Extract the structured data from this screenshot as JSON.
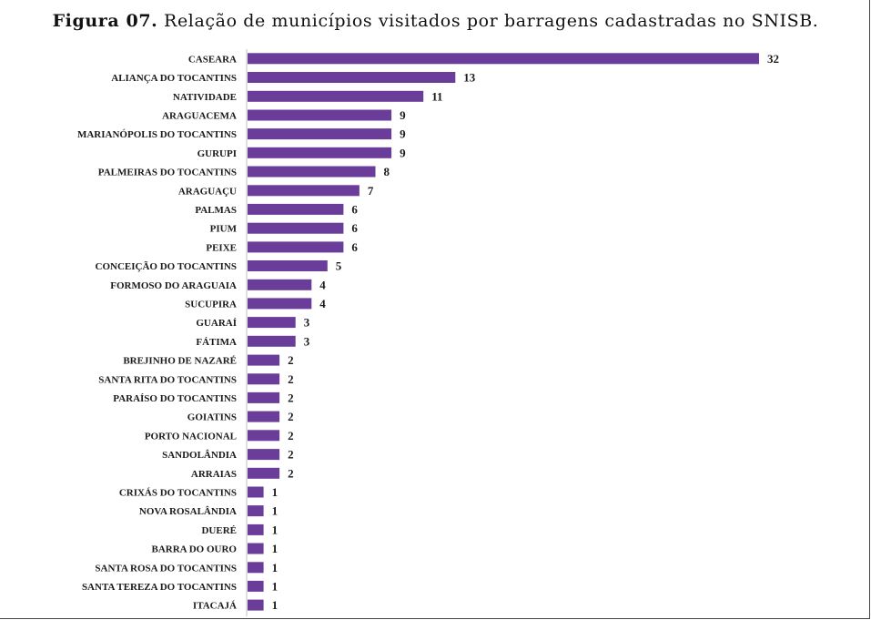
{
  "title": {
    "prefix": "Figura 07.",
    "text": "Relação de municípios visitados por  barragens cadastradas no SNISB."
  },
  "chart_data": {
    "type": "bar",
    "orientation": "horizontal",
    "categories": [
      "CASEARA",
      "ALIANÇA DO TOCANTINS",
      "NATIVIDADE",
      "ARAGUACEMA",
      "MARIANÓPOLIS DO TOCANTINS",
      "GURUPI",
      "PALMEIRAS DO TOCANTINS",
      "ARAGUAÇU",
      "PALMAS",
      "PIUM",
      "PEIXE",
      "CONCEIÇÃO DO TOCANTINS",
      "FORMOSO DO ARAGUAIA",
      "SUCUPIRA",
      "GUARAÍ",
      "FÁTIMA",
      "BREJINHO DE NAZARÉ",
      "SANTA RITA DO TOCANTINS",
      "PARAÍSO DO TOCANTINS",
      "GOIATINS",
      "PORTO NACIONAL",
      "SANDOLÂNDIA",
      "ARRAIAS",
      "CRIXÁS DO TOCANTINS",
      "NOVA ROSALÂNDIA",
      "DUERÉ",
      "BARRA DO OURO",
      "SANTA ROSA DO TOCANTINS",
      "SANTA TEREZA DO TOCANTINS",
      "ITACAJÁ"
    ],
    "values": [
      32,
      13,
      11,
      9,
      9,
      9,
      8,
      7,
      6,
      6,
      6,
      5,
      4,
      4,
      3,
      3,
      2,
      2,
      2,
      2,
      2,
      2,
      2,
      1,
      1,
      1,
      1,
      1,
      1,
      1
    ],
    "value_labels": [
      "32",
      "13",
      "11",
      "9",
      "9",
      "9",
      "8",
      "7",
      "6",
      "6",
      "6",
      "5",
      "4",
      "4",
      "3",
      "3",
      "2",
      "2",
      "2",
      "2",
      "2",
      "2",
      "2",
      "1",
      "1",
      "1",
      "1",
      "1",
      "1",
      "1"
    ],
    "xlim": [
      0,
      32
    ],
    "grid": false,
    "legend": "none",
    "bar_color": "#6a3d9a",
    "axis_color": "#bfbfbf"
  }
}
